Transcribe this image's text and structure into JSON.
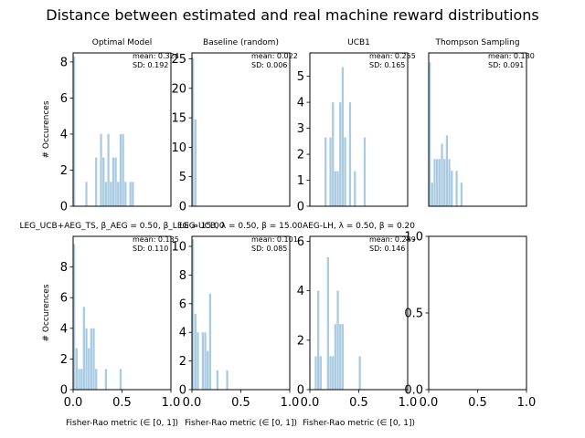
{
  "figure_title": "Distance between estimated and real machine reward distributions",
  "colors": {
    "bar": "#a8cbe2",
    "axis": "#000000",
    "background": "#ffffff"
  },
  "chart_data": [
    {
      "type": "bar",
      "panel": "row1-col1",
      "title": "Optimal Model",
      "xlabel": "",
      "ylabel": "# Occurences",
      "xlim": [
        0,
        1
      ],
      "ylim": [
        0,
        8.5
      ],
      "xticks": [],
      "yticks": [
        0,
        2,
        4,
        6,
        8
      ],
      "annotation": {
        "mean": "mean: 0.324",
        "sd": "SD: 0.192"
      },
      "bar_width": 0.025,
      "bars": [
        [
          0.0,
          8.3
        ],
        [
          0.125,
          1.35
        ],
        [
          0.225,
          2.7
        ],
        [
          0.275,
          4.0
        ],
        [
          0.3,
          2.7
        ],
        [
          0.325,
          1.35
        ],
        [
          0.35,
          4.0
        ],
        [
          0.375,
          1.35
        ],
        [
          0.4,
          2.7
        ],
        [
          0.425,
          2.7
        ],
        [
          0.45,
          1.35
        ],
        [
          0.475,
          4.0
        ],
        [
          0.5,
          4.0
        ],
        [
          0.525,
          1.35
        ],
        [
          0.575,
          1.35
        ],
        [
          0.6,
          1.35
        ]
      ]
    },
    {
      "type": "bar",
      "panel": "row1-col2",
      "title": "Baseline (random)",
      "xlabel": "",
      "ylabel": "",
      "xlim": [
        0,
        1
      ],
      "ylim": [
        0,
        26
      ],
      "xticks": [],
      "yticks": [
        0,
        5,
        10,
        15,
        20,
        25
      ],
      "annotation": {
        "mean": "mean: 0.022",
        "sd": "SD: 0.006"
      },
      "bar_width": 0.025,
      "bars": [
        [
          0.0,
          25.2
        ],
        [
          0.025,
          14.7
        ]
      ]
    },
    {
      "type": "bar",
      "panel": "row1-col3",
      "title": "UCB1",
      "xlabel": "",
      "ylabel": "",
      "xlim": [
        0,
        1
      ],
      "ylim": [
        0,
        5.9
      ],
      "xticks": [],
      "yticks": [
        0,
        1,
        2,
        3,
        4,
        5
      ],
      "annotation": {
        "mean": "mean: 0.255",
        "sd": "SD: 0.165"
      },
      "bar_width": 0.025,
      "bars": [
        [
          0.15,
          2.65
        ],
        [
          0.2,
          2.65
        ],
        [
          0.225,
          4.0
        ],
        [
          0.25,
          1.35
        ],
        [
          0.275,
          1.35
        ],
        [
          0.3,
          4.0
        ],
        [
          0.325,
          5.35
        ],
        [
          0.35,
          2.65
        ],
        [
          0.4,
          4.0
        ],
        [
          0.45,
          1.35
        ],
        [
          0.55,
          2.65
        ]
      ]
    },
    {
      "type": "bar",
      "panel": "row1-col4",
      "title": "Thompson Sampling",
      "xlabel": "",
      "ylabel": "",
      "xlim": [
        0,
        1
      ],
      "ylim": [
        0,
        13
      ],
      "xticks": [],
      "yticks": [],
      "annotation": {
        "mean": "mean: 0.180",
        "sd": "SD: 0.091"
      },
      "bar_width": 0.025,
      "bars": [
        [
          0.0,
          12.2
        ],
        [
          0.025,
          2.0
        ],
        [
          0.05,
          4.0
        ],
        [
          0.075,
          4.0
        ],
        [
          0.1,
          4.0
        ],
        [
          0.125,
          5.3
        ],
        [
          0.15,
          4.0
        ],
        [
          0.175,
          6.0
        ],
        [
          0.2,
          4.0
        ],
        [
          0.225,
          3.0
        ],
        [
          0.275,
          3.0
        ],
        [
          0.325,
          2.0
        ]
      ]
    },
    {
      "type": "bar",
      "panel": "row2-col1",
      "title": "LEG_UCB+AEG_TS, β_AEG = 0.50, β_LEG = 15.00",
      "xlabel": "Fisher-Rao metric (∈ [0, 1])",
      "ylabel": "# Occurences",
      "xlim": [
        0,
        1
      ],
      "ylim": [
        0,
        10
      ],
      "xticks": [
        "0.0",
        "0.5",
        "1.0"
      ],
      "yticks": [
        0,
        2,
        4,
        6,
        8
      ],
      "annotation": {
        "mean": "mean: 0.135",
        "sd": "SD: 0.110"
      },
      "bar_width": 0.025,
      "bars": [
        [
          0.0,
          9.5
        ],
        [
          0.025,
          2.7
        ],
        [
          0.05,
          1.35
        ],
        [
          0.075,
          1.35
        ],
        [
          0.1,
          5.4
        ],
        [
          0.125,
          4.0
        ],
        [
          0.15,
          2.7
        ],
        [
          0.175,
          4.0
        ],
        [
          0.2,
          4.0
        ],
        [
          0.225,
          1.35
        ],
        [
          0.325,
          1.35
        ],
        [
          0.475,
          1.35
        ]
      ]
    },
    {
      "type": "bar",
      "panel": "row2-col2",
      "title": "LEG-UCB, λ = 0.50, β = 15.00",
      "xlabel": "Fisher-Rao metric (∈ [0, 1])",
      "ylabel": "",
      "xlim": [
        0,
        1
      ],
      "ylim": [
        0,
        10.7
      ],
      "xticks": [
        "0.0",
        "0.5",
        "1.0"
      ],
      "yticks": [
        0,
        2,
        4,
        6,
        8,
        10
      ],
      "annotation": {
        "mean": "mean: 0.101",
        "sd": "SD: 0.085"
      },
      "bar_width": 0.025,
      "bars": [
        [
          0.0,
          10.5
        ],
        [
          0.025,
          5.3
        ],
        [
          0.05,
          4.0
        ],
        [
          0.1,
          4.0
        ],
        [
          0.125,
          4.0
        ],
        [
          0.15,
          2.7
        ],
        [
          0.175,
          6.7
        ],
        [
          0.25,
          1.35
        ],
        [
          0.35,
          1.35
        ]
      ]
    },
    {
      "type": "bar",
      "panel": "row2-col3",
      "title": "AEG-LH, λ = 0.50, β = 0.20",
      "xlabel": "Fisher-Rao metric (∈ [0, 1])",
      "ylabel": "",
      "xlim": [
        0,
        1
      ],
      "ylim": [
        0,
        6.2
      ],
      "xticks": [
        "0.0",
        "0.5",
        "1.0"
      ],
      "yticks": [
        0,
        2,
        4,
        6
      ],
      "annotation": {
        "mean": "mean: 0.289",
        "sd": "SD: 0.146"
      },
      "bar_width": 0.025,
      "bars": [
        [
          0.05,
          1.35
        ],
        [
          0.075,
          4.0
        ],
        [
          0.1,
          1.35
        ],
        [
          0.175,
          5.35
        ],
        [
          0.2,
          1.35
        ],
        [
          0.225,
          1.35
        ],
        [
          0.25,
          2.65
        ],
        [
          0.275,
          4.0
        ],
        [
          0.3,
          2.65
        ],
        [
          0.325,
          2.65
        ],
        [
          0.5,
          1.35
        ]
      ]
    },
    {
      "type": "bar",
      "panel": "row2-col4",
      "title": "",
      "xlabel": "",
      "ylabel": "",
      "xlim": [
        0,
        1
      ],
      "ylim": [
        0,
        1
      ],
      "xticks": [
        "0.0",
        "0.5",
        "1.0"
      ],
      "yticks": [
        "0.0",
        "0.5",
        "1.0"
      ],
      "annotation": {
        "mean": "",
        "sd": ""
      },
      "bar_width": 0.025,
      "bars": []
    }
  ]
}
